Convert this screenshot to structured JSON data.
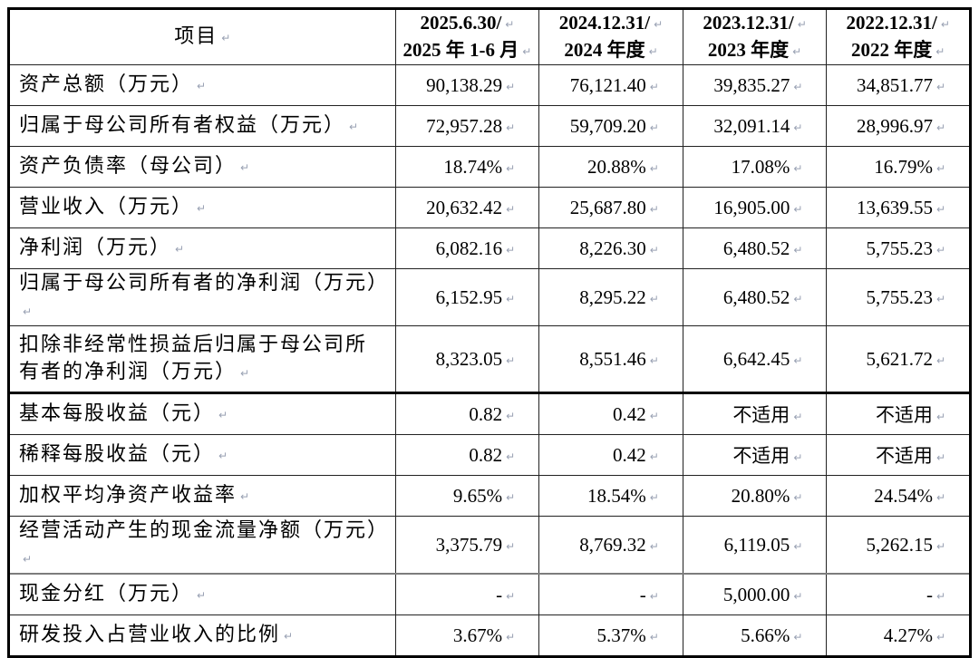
{
  "colors": {
    "text": "#000000",
    "table_border": "#000000",
    "grid_line": "#222222",
    "section_divider_gray": "#7d7d7d",
    "paragraph_mark": "#99a1b3",
    "background": "#ffffff"
  },
  "icons": {
    "paragraph_mark": "return-arrow-icon"
  },
  "table": {
    "header": {
      "item_col": "项目",
      "period_cols": [
        {
          "line1": "2025.6.30/",
          "line2": "2025 年 1-6 月"
        },
        {
          "line1": "2024.12.31/",
          "line2": "2024 年度"
        },
        {
          "line1": "2023.12.31/",
          "line2": "2023 年度"
        },
        {
          "line1": "2022.12.31/",
          "line2": "2022 年度"
        }
      ]
    },
    "rows": [
      {
        "label": "资产总额（万元）",
        "values": [
          "90,138.29",
          "76,121.40",
          "39,835.27",
          "34,851.77"
        ]
      },
      {
        "label": "归属于母公司所有者权益（万元）",
        "values": [
          "72,957.28",
          "59,709.20",
          "32,091.14",
          "28,996.97"
        ]
      },
      {
        "label": "资产负债率（母公司）",
        "values": [
          "18.74%",
          "20.88%",
          "17.08%",
          "16.79%"
        ]
      },
      {
        "label": "营业收入（万元）",
        "values": [
          "20,632.42",
          "25,687.80",
          "16,905.00",
          "13,639.55"
        ]
      },
      {
        "label": "净利润（万元）",
        "values": [
          "6,082.16",
          "8,226.30",
          "6,480.52",
          "5,755.23"
        ]
      },
      {
        "label": "归属于母公司所有者的净利润（万元）",
        "values": [
          "6,152.95",
          "8,295.22",
          "6,480.52",
          "5,755.23"
        ]
      },
      {
        "label": "扣除非经常性损益后归属于母公司所有者的净利润（万元）",
        "values": [
          "8,323.05",
          "8,551.46",
          "6,642.45",
          "5,621.72"
        ]
      },
      {
        "label": "基本每股收益（元）",
        "values": [
          "0.82",
          "0.42",
          "不适用",
          "不适用"
        ]
      },
      {
        "label": "稀释每股收益（元）",
        "values": [
          "0.82",
          "0.42",
          "不适用",
          "不适用"
        ]
      },
      {
        "label": "加权平均净资产收益率",
        "values": [
          "9.65%",
          "18.54%",
          "20.80%",
          "24.54%"
        ]
      },
      {
        "label": "经营活动产生的现金流量净额（万元）",
        "values": [
          "3,375.79",
          "8,769.32",
          "6,119.05",
          "5,262.15"
        ]
      },
      {
        "label": "现金分红（万元）",
        "values": [
          "-",
          "-",
          "5,000.00",
          "-"
        ]
      },
      {
        "label": "研发投入占营业收入的比例",
        "values": [
          "3.67%",
          "5.37%",
          "5.66%",
          "4.27%"
        ]
      }
    ]
  }
}
